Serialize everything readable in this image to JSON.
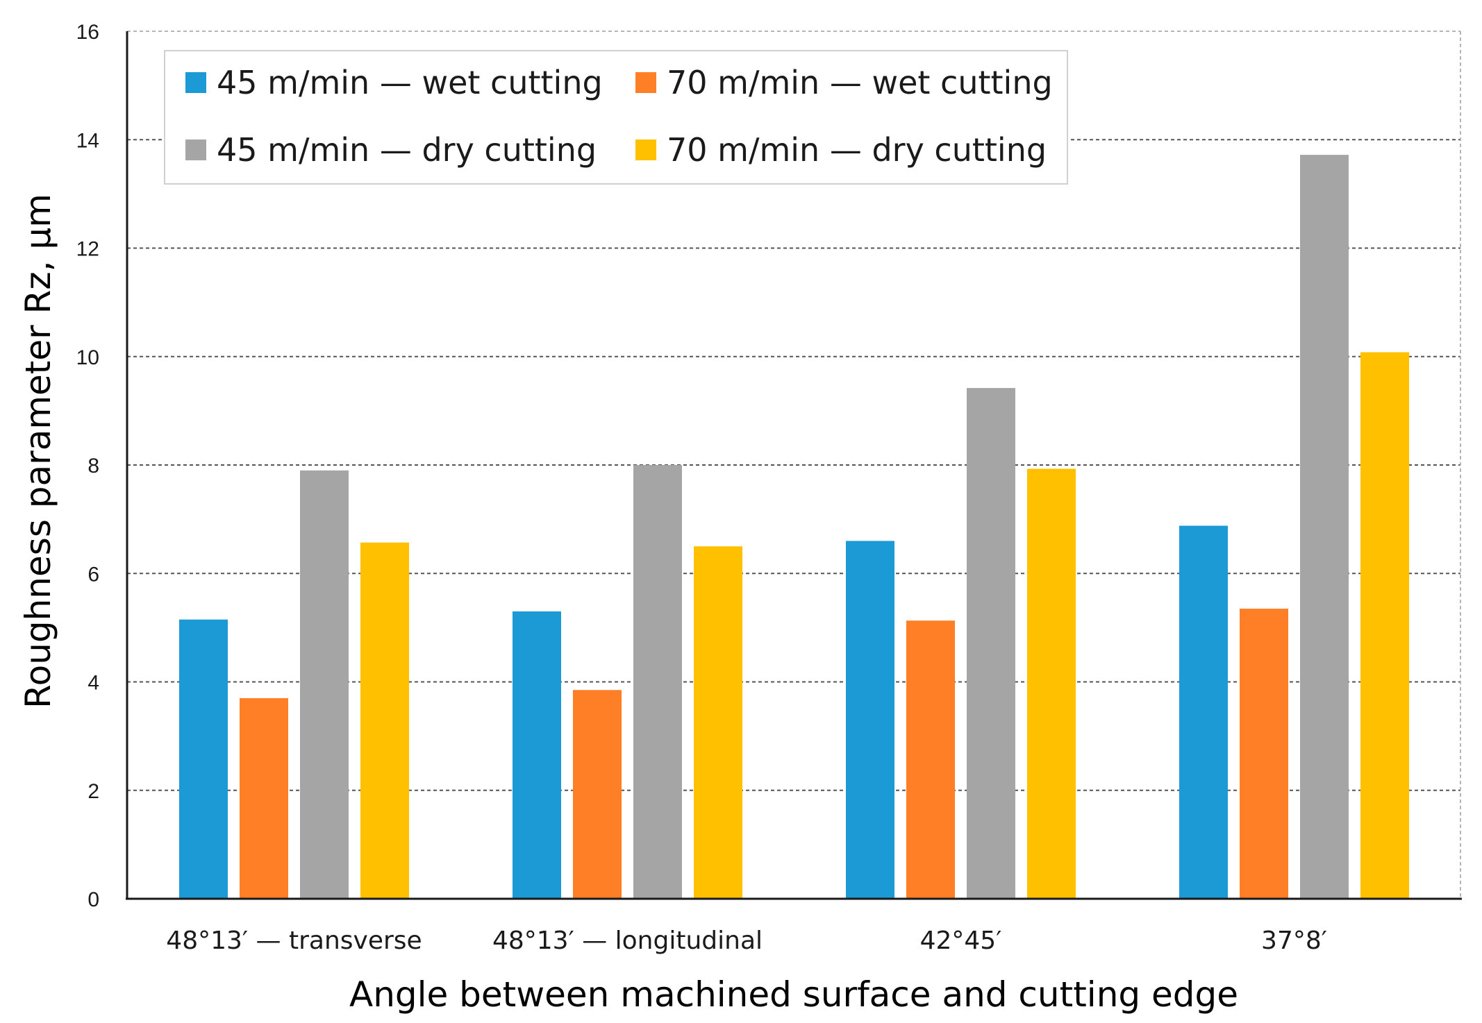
{
  "chart_data": {
    "type": "bar",
    "title": "",
    "xlabel": "Angle between machined surface and cutting edge",
    "ylabel": "Roughness parameter Rz, µm",
    "ylim": [
      0,
      16
    ],
    "yticks": [
      "0",
      "2",
      "4",
      "6",
      "8",
      "10",
      "12",
      "14",
      "16"
    ],
    "grid": true,
    "legend_position": "top-left",
    "categories": [
      "48°13′ — transverse",
      "48°13′ — longitudinal",
      "42°45′",
      "37°8′"
    ],
    "series": [
      {
        "name": "45 m/min — wet cutting",
        "color": "#1C9AD6",
        "values": [
          5.15,
          5.3,
          6.6,
          6.88
        ]
      },
      {
        "name": "70 m/min — wet cutting",
        "color": "#FF7F27",
        "values": [
          3.7,
          3.85,
          5.13,
          5.35
        ]
      },
      {
        "name": "45 m/min — dry cutting",
        "color": "#A5A5A5",
        "values": [
          7.9,
          8.0,
          9.42,
          13.72
        ]
      },
      {
        "name": "70 m/min — dry cutting",
        "color": "#FFC000",
        "values": [
          6.57,
          6.5,
          7.93,
          10.08
        ]
      }
    ]
  }
}
